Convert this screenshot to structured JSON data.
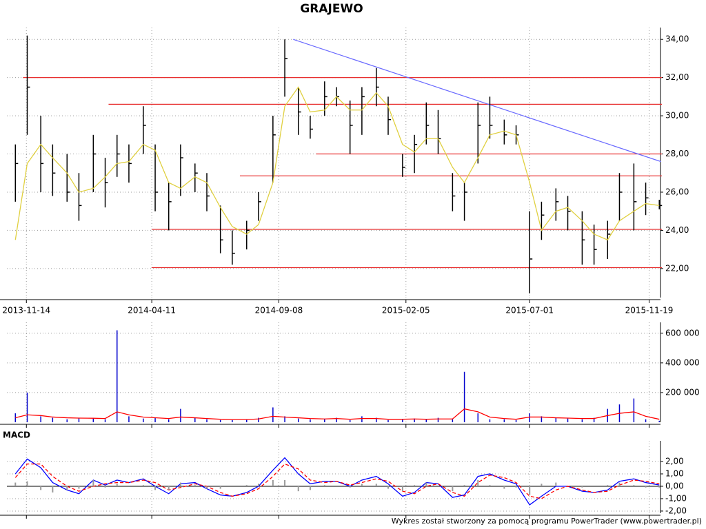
{
  "footer": "Wykres został stworzony za pomocą programu PowerTrader (www.powertrader.pl)",
  "chart_data": [
    {
      "type": "ohlc",
      "title": "GRAJEWO",
      "x": [
        "2013-11-01",
        "2013-11-15",
        "2013-12-01",
        "2013-12-15",
        "2014-01-01",
        "2014-01-15",
        "2014-02-01",
        "2014-02-15",
        "2014-03-01",
        "2014-03-15",
        "2014-04-01",
        "2014-04-15",
        "2014-05-01",
        "2014-05-15",
        "2014-06-01",
        "2014-06-15",
        "2014-07-01",
        "2014-07-15",
        "2014-08-01",
        "2014-08-15",
        "2014-09-01",
        "2014-09-15",
        "2014-10-01",
        "2014-10-15",
        "2014-11-01",
        "2014-11-15",
        "2014-12-01",
        "2014-12-15",
        "2015-01-01",
        "2015-01-15",
        "2015-02-01",
        "2015-02-15",
        "2015-03-01",
        "2015-03-15",
        "2015-04-01",
        "2015-04-15",
        "2015-05-01",
        "2015-05-15",
        "2015-06-01",
        "2015-06-15",
        "2015-07-01",
        "2015-07-15",
        "2015-08-01",
        "2015-08-15",
        "2015-09-01",
        "2015-09-15",
        "2015-10-01",
        "2015-10-15",
        "2015-11-01",
        "2015-11-15",
        "2015-12-01"
      ],
      "high": [
        28.5,
        34.2,
        30,
        28.5,
        28,
        27,
        29,
        27.8,
        29,
        28.5,
        30.5,
        28.5,
        26.5,
        28.5,
        27.5,
        27,
        25.3,
        24,
        24.5,
        26,
        30,
        34,
        31.5,
        30,
        31.8,
        31.5,
        30.8,
        31.5,
        32.5,
        31,
        28,
        29,
        30.7,
        30.3,
        27,
        26.5,
        30.7,
        31,
        29.8,
        29.5,
        25,
        25.5,
        26.2,
        25.8,
        25,
        24.3,
        24.5,
        27,
        27.5,
        26.5,
        25.6
      ],
      "low": [
        25.5,
        29,
        26,
        25.8,
        25.5,
        24.5,
        26,
        25.2,
        26.8,
        26.5,
        28,
        25,
        24,
        25.8,
        26,
        25,
        22.8,
        22.2,
        23,
        24.5,
        26.5,
        31,
        29,
        28.8,
        30,
        30.5,
        28,
        29,
        30.5,
        29,
        26.8,
        27,
        28.5,
        28,
        25,
        24.5,
        27.5,
        28.8,
        28.5,
        28.5,
        20.7,
        23.5,
        24.5,
        24,
        22.2,
        22.2,
        22.5,
        24.5,
        24,
        24.8,
        25.1
      ],
      "close": [
        27.5,
        31.5,
        27.5,
        27,
        26,
        25.3,
        28,
        26.5,
        28,
        27.5,
        29.5,
        26,
        25.5,
        27.8,
        27,
        25.8,
        23.5,
        22.8,
        24,
        25.5,
        29,
        33,
        30.2,
        29.3,
        31,
        31,
        29.5,
        31,
        31.5,
        29.8,
        27.3,
        28.5,
        29.5,
        28.8,
        25.8,
        26,
        29.5,
        29.5,
        29,
        29,
        22.5,
        24.8,
        25.5,
        25,
        23.5,
        23,
        23.8,
        26,
        25.5,
        25.7,
        25.3
      ],
      "color": "#000000",
      "ma_values": [
        23.5,
        27.5,
        28.5,
        27.8,
        27,
        26,
        26.2,
        26.8,
        27.5,
        27.6,
        28.5,
        28.2,
        26.5,
        26.2,
        26.8,
        26.5,
        25.2,
        24.2,
        23.8,
        24.3,
        26.5,
        30.5,
        31.5,
        30.2,
        30.3,
        31,
        30.3,
        30.3,
        31.2,
        30.5,
        28.5,
        28.1,
        28.8,
        28.8,
        27.3,
        26.5,
        27.8,
        29,
        29.2,
        29,
        26.5,
        24,
        25,
        25.2,
        24.5,
        23.8,
        23.5,
        24.5,
        25,
        25.4,
        25.3
      ],
      "ma_color": "#e0d040",
      "levels": [
        {
          "value": 32,
          "start": "2013-11-10"
        },
        {
          "value": 30.6,
          "start": "2014-02-19"
        },
        {
          "value": 28,
          "start": "2014-10-22"
        },
        {
          "value": 26.85,
          "start": "2014-07-24"
        },
        {
          "value": 24.05,
          "start": "2014-04-11"
        },
        {
          "value": 22.05,
          "start": "2014-04-11"
        }
      ],
      "level_color": "#e83030",
      "trend": {
        "x": [
          "2014-09-25",
          "2015-12-03"
        ],
        "y": [
          34,
          27.6
        ],
        "color": "#6a6aff"
      },
      "xlim": [
        "2013-10-22",
        "2015-11-30"
      ],
      "xticks": [
        "2013-11-14",
        "2014-04-11",
        "2014-09-08",
        "2015-02-05",
        "2015-07-01",
        "2015-11-19"
      ],
      "ylim": [
        20.48,
        34.44
      ],
      "yticks": [
        {
          "value": 22,
          "label": "22,00"
        },
        {
          "value": 24,
          "label": "24,00"
        },
        {
          "value": 26,
          "label": "26,00"
        },
        {
          "value": 28,
          "label": "28,00"
        },
        {
          "value": 30,
          "label": "30,00"
        },
        {
          "value": 32,
          "label": "32,00"
        },
        {
          "value": 34,
          "label": "34,00"
        }
      ],
      "grid": true
    },
    {
      "type": "volume",
      "values": [
        60000,
        200000,
        40000,
        30000,
        20000,
        30000,
        25000,
        20000,
        620000,
        40000,
        25000,
        30000,
        20000,
        90000,
        30000,
        20000,
        15000,
        15000,
        20000,
        30000,
        100000,
        40000,
        25000,
        20000,
        20000,
        30000,
        15000,
        40000,
        30000,
        15000,
        20000,
        25000,
        20000,
        30000,
        20000,
        340000,
        60000,
        20000,
        20000,
        15000,
        60000,
        40000,
        30000,
        25000,
        20000,
        30000,
        90000,
        120000,
        160000,
        20000,
        10000
      ],
      "color": "#0000cc",
      "ma_values": [
        30000,
        50000,
        45000,
        35000,
        30000,
        28000,
        27000,
        25000,
        70000,
        50000,
        35000,
        30000,
        25000,
        35000,
        30000,
        25000,
        20000,
        18000,
        18000,
        22000,
        40000,
        35000,
        30000,
        25000,
        22000,
        25000,
        20000,
        25000,
        25000,
        20000,
        20000,
        22000,
        20000,
        22000,
        22000,
        90000,
        70000,
        35000,
        25000,
        20000,
        35000,
        35000,
        30000,
        28000,
        25000,
        25000,
        45000,
        60000,
        70000,
        40000,
        20000
      ],
      "ma_color": "#ff0000",
      "ylim": [
        0,
        650000
      ],
      "yticks": [
        {
          "value": 200000,
          "label": "200 000"
        },
        {
          "value": 400000,
          "label": "400 000"
        },
        {
          "value": 600000,
          "label": "600 000"
        }
      ],
      "grid": true
    },
    {
      "type": "macd",
      "title": "MACD",
      "series": [
        {
          "color": "#0000ff",
          "values": [
            1.0,
            2.2,
            1.5,
            0.3,
            -0.3,
            -0.6,
            0.5,
            0.1,
            0.5,
            0.3,
            0.6,
            0.0,
            -0.6,
            0.2,
            0.3,
            -0.2,
            -0.7,
            -0.8,
            -0.5,
            0.0,
            1.3,
            2.3,
            1.0,
            0.2,
            0.4,
            0.4,
            0.0,
            0.5,
            0.8,
            0.2,
            -0.8,
            -0.5,
            0.3,
            0.2,
            -0.9,
            -0.7,
            0.8,
            1.0,
            0.5,
            0.2,
            -1.5,
            -0.8,
            0.0,
            0.0,
            -0.4,
            -0.5,
            -0.3,
            0.4,
            0.6,
            0.3,
            0.1
          ]
        },
        {
          "color": "#ff0000",
          "dashed": true,
          "values": [
            0.7,
            1.8,
            1.8,
            0.8,
            0.0,
            -0.4,
            0.0,
            0.2,
            0.3,
            0.3,
            0.5,
            0.3,
            -0.3,
            -0.1,
            0.2,
            0.0,
            -0.5,
            -0.8,
            -0.6,
            -0.2,
            0.8,
            1.8,
            1.4,
            0.5,
            0.3,
            0.4,
            0.1,
            0.3,
            0.6,
            0.4,
            -0.4,
            -0.6,
            0.0,
            0.2,
            -0.5,
            -0.8,
            0.3,
            0.9,
            0.7,
            0.3,
            -0.8,
            -1.0,
            -0.3,
            0.0,
            -0.3,
            -0.5,
            -0.4,
            0.1,
            0.5,
            0.4,
            0.2
          ]
        },
        {
          "color": "#999999",
          "style": "bar",
          "values": [
            0.3,
            0.4,
            -0.3,
            -0.5,
            -0.3,
            -0.2,
            0.5,
            -0.1,
            0.2,
            0,
            0.1,
            -0.3,
            -0.3,
            0.3,
            0.1,
            -0.2,
            -0.2,
            0,
            0.1,
            0.2,
            0.5,
            0.5,
            -0.4,
            -0.3,
            0.1,
            0,
            -0.1,
            0.2,
            0.2,
            -0.2,
            -0.4,
            0.1,
            0.3,
            0,
            -0.4,
            0.1,
            0.5,
            0.1,
            -0.2,
            -0.1,
            -0.7,
            0.2,
            0.3,
            0,
            -0.1,
            0,
            0.1,
            0.3,
            0.1,
            -0.1,
            -0.1
          ]
        }
      ],
      "ylim": [
        -2.17,
        3.39
      ],
      "yticks": [
        {
          "value": -2,
          "label": "-2,00"
        },
        {
          "value": -1,
          "label": "-1,00"
        },
        {
          "value": 0,
          "label": "0,00"
        },
        {
          "value": 1,
          "label": "1,00"
        },
        {
          "value": 2,
          "label": "2,00"
        }
      ],
      "grid": true
    }
  ]
}
